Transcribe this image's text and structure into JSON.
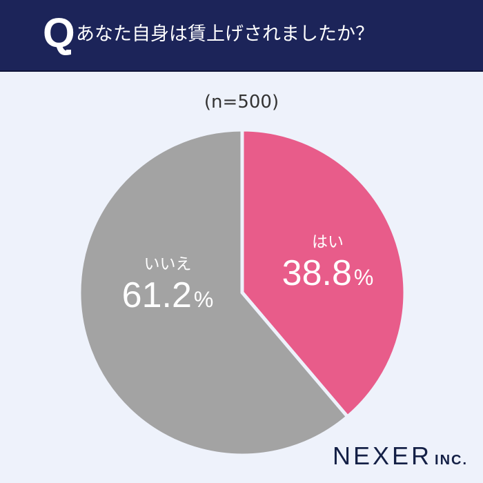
{
  "header": {
    "q_label": "Q",
    "question": "あなた自身は賃上げされましたか？"
  },
  "sample_size": "(n=500)",
  "chart_data": {
    "type": "pie",
    "title": "あなた自身は賃上げされましたか？",
    "subtitle": "(n=500)",
    "categories": [
      "はい",
      "いいえ"
    ],
    "values": [
      38.8,
      61.2
    ],
    "unit": "%",
    "colors": [
      "#e85c8a",
      "#a3a3a3"
    ],
    "start_angle": "top, clockwise",
    "legend": "none (labels inside slices)"
  },
  "labels": {
    "yes": {
      "name": "はい",
      "value": "38.8",
      "unit": "%"
    },
    "no": {
      "name": "いいえ",
      "value": "61.2",
      "unit": "%"
    }
  },
  "colors": {
    "header_bg": "#1c2459",
    "background": "#eef2fb",
    "yes": "#e85c8a",
    "no": "#a3a3a3",
    "logo": "#142046"
  },
  "logo": {
    "main": "NEXER",
    "sub": "INC."
  }
}
